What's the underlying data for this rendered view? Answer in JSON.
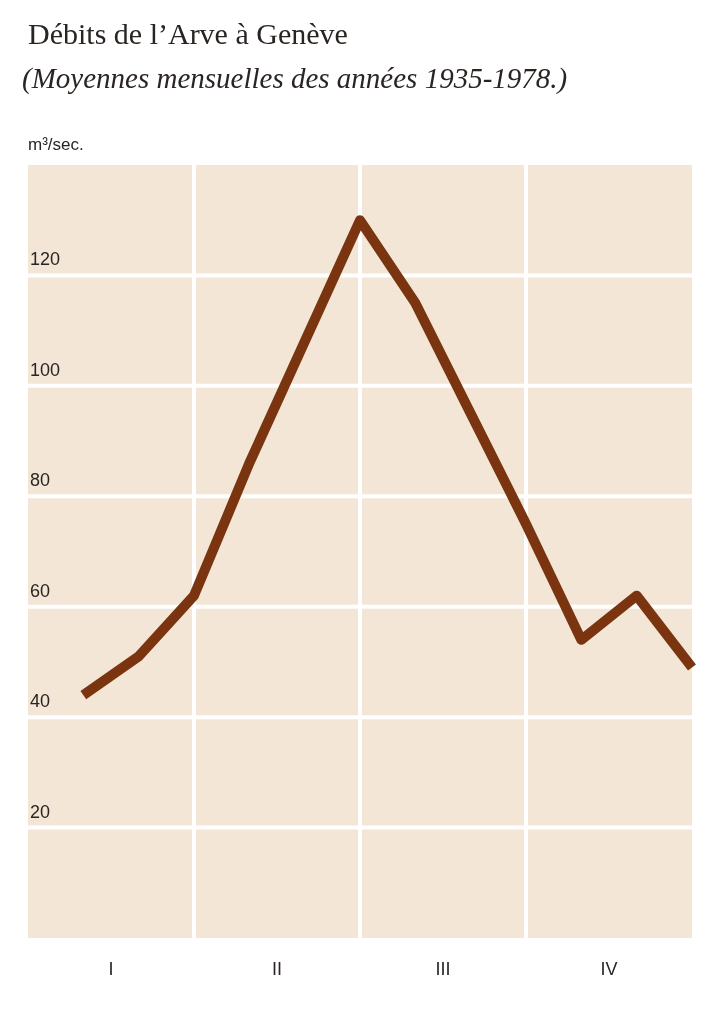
{
  "chart_data": {
    "type": "line",
    "title": "Débits de l’Arve à Genève",
    "subtitle": "(Moyennes mensuelles des années 1935-1978.)",
    "ylabel": "m³/sec.",
    "categories": [
      null,
      null,
      null,
      null,
      null,
      null,
      null,
      null,
      null,
      null,
      null,
      null
    ],
    "annotations": [
      "I",
      "II",
      "III",
      "IV"
    ],
    "series": [
      {
        "color": "#7a3410",
        "values": [
          44,
          51,
          62,
          86,
          108,
          130,
          115,
          95,
          75,
          54,
          62,
          49
        ]
      }
    ],
    "ylim": [
      0,
      140
    ],
    "yticks": [
      20,
      40,
      60,
      80,
      100,
      120
    ],
    "grid": true,
    "marker": "none",
    "line_style": "solid"
  }
}
